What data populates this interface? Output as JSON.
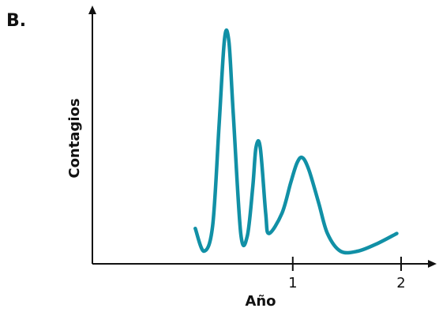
{
  "panel_label": "B.",
  "chart_data": {
    "type": "line",
    "title": "",
    "xlabel": "Año",
    "ylabel": "Contagios",
    "x_ticks": [
      {
        "value": 1,
        "label": "1"
      },
      {
        "value": 2,
        "label": "2"
      }
    ],
    "xlim": [
      -0.85,
      2.35
    ],
    "ylim": [
      0,
      1.0
    ],
    "y_ticks": [],
    "grid": false,
    "series": [
      {
        "color": "#1190a6",
        "points": [
          [
            0.1,
            0.14
          ],
          [
            0.18,
            0.05
          ],
          [
            0.26,
            0.15
          ],
          [
            0.32,
            0.55
          ],
          [
            0.37,
            0.89
          ],
          [
            0.41,
            0.88
          ],
          [
            0.45,
            0.6
          ],
          [
            0.52,
            0.12
          ],
          [
            0.58,
            0.11
          ],
          [
            0.63,
            0.3
          ],
          [
            0.66,
            0.46
          ],
          [
            0.7,
            0.46
          ],
          [
            0.75,
            0.2
          ],
          [
            0.78,
            0.12
          ],
          [
            0.9,
            0.2
          ],
          [
            0.98,
            0.32
          ],
          [
            1.04,
            0.4
          ],
          [
            1.09,
            0.42
          ],
          [
            1.15,
            0.37
          ],
          [
            1.24,
            0.24
          ],
          [
            1.32,
            0.12
          ],
          [
            1.44,
            0.05
          ],
          [
            1.6,
            0.05
          ],
          [
            1.78,
            0.08
          ],
          [
            1.96,
            0.12
          ]
        ]
      }
    ]
  }
}
